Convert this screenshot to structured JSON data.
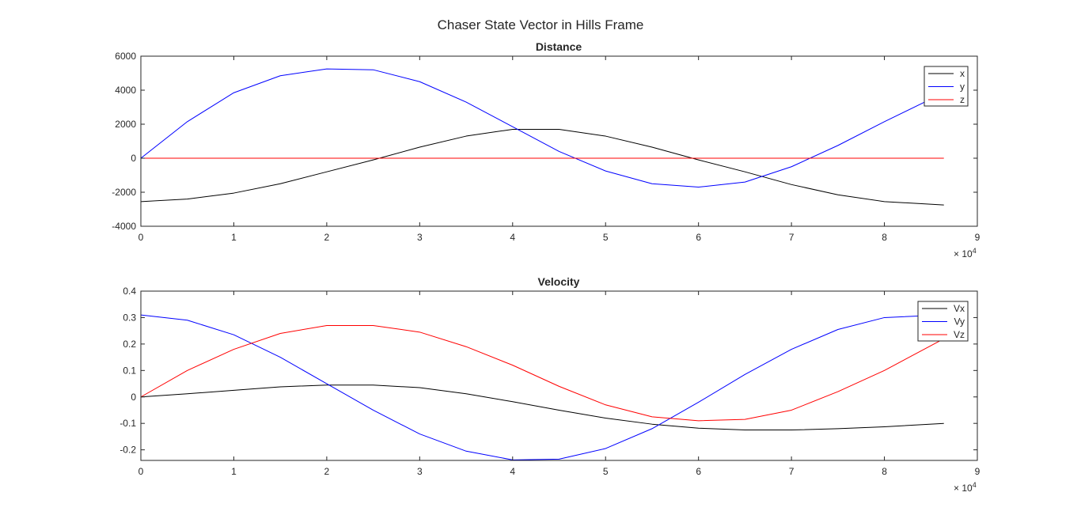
{
  "figure": {
    "suptitle": "Chaser State Vector in Hills Frame"
  },
  "colors": {
    "x": "#000000",
    "y": "#0000ff",
    "z": "#ff0000",
    "axes": "#262626",
    "background": "#ffffff"
  },
  "chart_data": [
    {
      "type": "line",
      "title": "Distance",
      "xlabel": "",
      "ylabel": "",
      "xlim": [
        0,
        90000
      ],
      "ylim": [
        -4000,
        6000
      ],
      "x_ticks": [
        0,
        10000,
        20000,
        30000,
        40000,
        50000,
        60000,
        70000,
        80000,
        90000
      ],
      "x_tick_labels": [
        "0",
        "1",
        "2",
        "3",
        "4",
        "5",
        "6",
        "7",
        "8",
        "9"
      ],
      "x_exponent_label": "× 10",
      "x_exponent_power": "4",
      "y_ticks": [
        -4000,
        -2000,
        0,
        2000,
        4000,
        6000
      ],
      "y_tick_labels": [
        "-4000",
        "-2000",
        "0",
        "2000",
        "4000",
        "6000"
      ],
      "grid": false,
      "legend_position": "top-right",
      "x": [
        0,
        5000,
        10000,
        15000,
        20000,
        25000,
        30000,
        35000,
        40000,
        45000,
        50000,
        55000,
        60000,
        65000,
        70000,
        75000,
        80000,
        86400
      ],
      "series": [
        {
          "name": "x",
          "color": "#000000",
          "values": [
            -2550,
            -2400,
            -2050,
            -1500,
            -800,
            -100,
            650,
            1300,
            1700,
            1700,
            1300,
            650,
            -100,
            -800,
            -1550,
            -2150,
            -2550,
            -2750
          ]
        },
        {
          "name": "y",
          "color": "#0000ff",
          "values": [
            0,
            2150,
            3850,
            4850,
            5250,
            5200,
            4500,
            3300,
            1850,
            400,
            -750,
            -1500,
            -1700,
            -1400,
            -500,
            750,
            2150,
            3850
          ]
        },
        {
          "name": "z",
          "color": "#ff0000",
          "values": [
            0,
            0,
            0,
            0,
            0,
            0,
            0,
            0,
            0,
            0,
            0,
            0,
            0,
            0,
            0,
            0,
            0,
            0
          ]
        }
      ]
    },
    {
      "type": "line",
      "title": "Velocity",
      "xlabel": "",
      "ylabel": "",
      "xlim": [
        0,
        90000
      ],
      "ylim": [
        -0.24,
        0.4
      ],
      "x_ticks": [
        0,
        10000,
        20000,
        30000,
        40000,
        50000,
        60000,
        70000,
        80000,
        90000
      ],
      "x_tick_labels": [
        "0",
        "1",
        "2",
        "3",
        "4",
        "5",
        "6",
        "7",
        "8",
        "9"
      ],
      "x_exponent_label": "× 10",
      "x_exponent_power": "4",
      "y_ticks": [
        -0.2,
        -0.1,
        0,
        0.1,
        0.2,
        0.3,
        0.4
      ],
      "y_tick_labels": [
        "-0.2",
        "-0.1",
        "0",
        "0.1",
        "0.2",
        "0.3",
        "0.4"
      ],
      "grid": false,
      "legend_position": "top-right",
      "x": [
        0,
        5000,
        10000,
        15000,
        20000,
        25000,
        30000,
        35000,
        40000,
        45000,
        50000,
        55000,
        60000,
        65000,
        70000,
        75000,
        80000,
        86400
      ],
      "series": [
        {
          "name": "Vx",
          "color": "#000000",
          "values": [
            0,
            0.012,
            0.025,
            0.038,
            0.045,
            0.045,
            0.035,
            0.012,
            -0.018,
            -0.05,
            -0.08,
            -0.103,
            -0.118,
            -0.125,
            -0.125,
            -0.12,
            -0.113,
            -0.1
          ]
        },
        {
          "name": "Vy",
          "color": "#0000ff",
          "values": [
            0.31,
            0.29,
            0.235,
            0.15,
            0.05,
            -0.05,
            -0.14,
            -0.205,
            -0.238,
            -0.235,
            -0.195,
            -0.12,
            -0.02,
            0.085,
            0.18,
            0.255,
            0.3,
            0.31
          ]
        },
        {
          "name": "Vz",
          "color": "#ff0000",
          "values": [
            0,
            0.1,
            0.18,
            0.24,
            0.27,
            0.27,
            0.245,
            0.19,
            0.12,
            0.04,
            -0.03,
            -0.075,
            -0.09,
            -0.085,
            -0.05,
            0.02,
            0.1,
            0.22
          ]
        }
      ]
    }
  ]
}
